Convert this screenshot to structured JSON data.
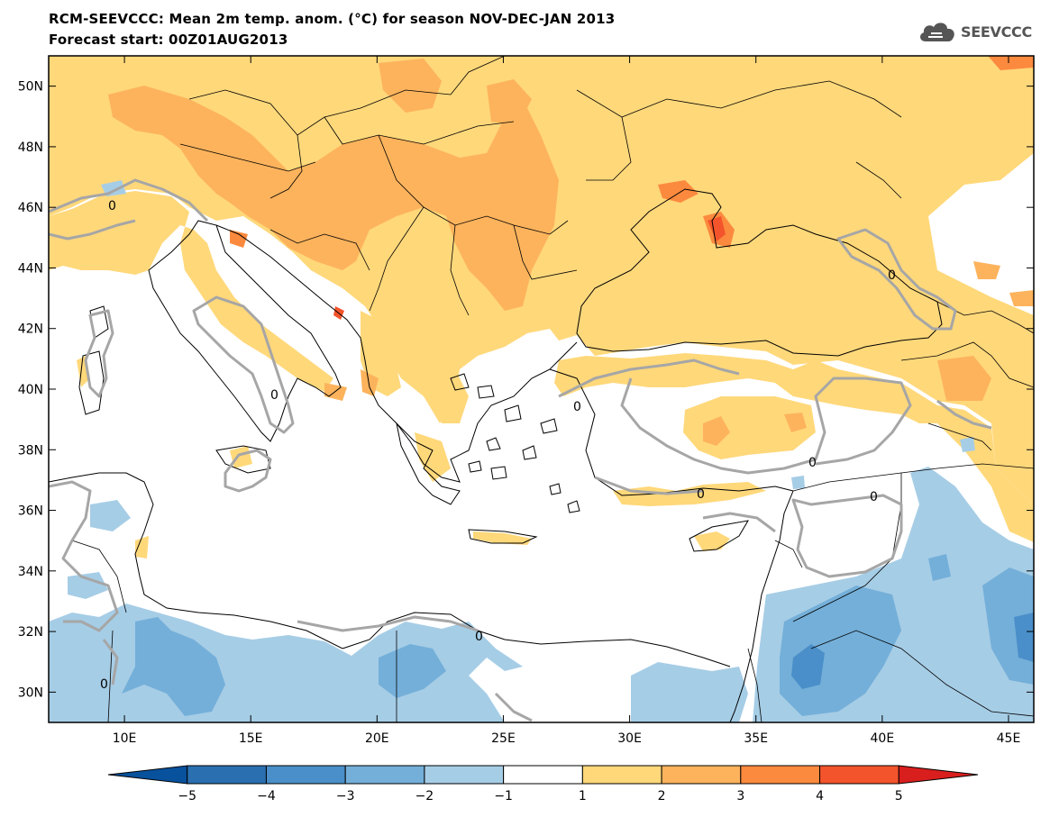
{
  "header": {
    "title": "RCM-SEEVCCC: Mean 2m temp. anom. (°C) for season NOV-DEC-JAN 2013",
    "subtitle": "Forecast start: 00Z01AUG2013",
    "logo_text": "SEEVCCC",
    "logo_icon": "cloud-icon"
  },
  "map": {
    "lon_range": [
      7,
      46
    ],
    "lat_range": [
      29,
      51
    ],
    "lon_ticks": [
      "10E",
      "15E",
      "20E",
      "25E",
      "30E",
      "35E",
      "40E",
      "45E"
    ],
    "lat_ticks": [
      "50N",
      "48N",
      "46N",
      "44N",
      "42N",
      "40N",
      "38N",
      "36N",
      "34N",
      "32N",
      "30N"
    ],
    "contour_label": "0"
  },
  "colorbar": {
    "labels": [
      "−5",
      "−4",
      "−3",
      "−2",
      "−1",
      "1",
      "2",
      "3",
      "4",
      "5"
    ],
    "colors": [
      "#08519c",
      "#2a6fb0",
      "#4a8fc9",
      "#74afd9",
      "#a6cde6",
      "#ffffff",
      "#ffd87a",
      "#fdb35c",
      "#fc8a3e",
      "#f4542b",
      "#d91e1e"
    ]
  }
}
